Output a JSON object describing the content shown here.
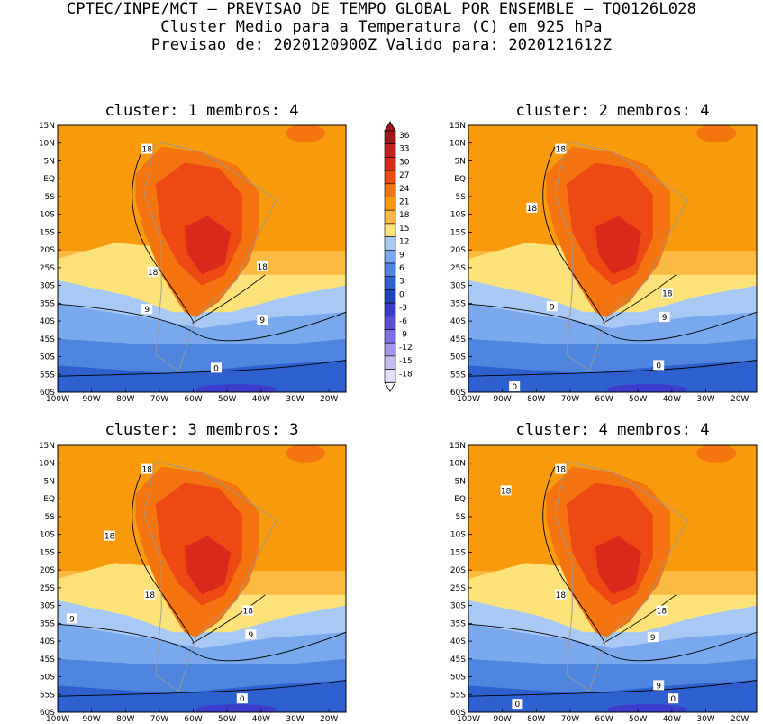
{
  "header": {
    "line1": "CPTEC/INPE/MCT – PREVISAO DE TEMPO GLOBAL POR ENSEMBLE – TQ0126L028",
    "line2": "Cluster Medio para a Temperatura (C) em 925 hPa",
    "line3": "Previsao de: 2020120900Z   Valido para: 2020121612Z"
  },
  "panels": [
    {
      "title": "cluster: 1   membros: 4",
      "contours": [
        "18",
        "18",
        "18",
        "9",
        "9",
        "0"
      ]
    },
    {
      "title": "cluster: 2   membros: 4",
      "contours": [
        "18",
        "18",
        "18",
        "9",
        "9",
        "0",
        "0"
      ]
    },
    {
      "title": "cluster: 3   membros: 3",
      "contours": [
        "18",
        "18",
        "18",
        "18",
        "9",
        "9",
        "0"
      ]
    },
    {
      "title": "cluster: 4   membros: 4",
      "contours": [
        "18",
        "18",
        "18",
        "18",
        "9",
        "9",
        "0",
        "0"
      ]
    }
  ],
  "axes": {
    "lat_labels": [
      "15N",
      "10N",
      "5N",
      "EQ",
      "5S",
      "10S",
      "15S",
      "20S",
      "25S",
      "30S",
      "35S",
      "40S",
      "45S",
      "50S",
      "55S",
      "60S"
    ],
    "lon_labels": [
      "100W",
      "90W",
      "80W",
      "70W",
      "60W",
      "50W",
      "40W",
      "30W",
      "20W"
    ]
  },
  "colorbar": {
    "labels": [
      "36",
      "33",
      "30",
      "27",
      "24",
      "21",
      "18",
      "15",
      "12",
      "9",
      "6",
      "3",
      "0",
      "-3",
      "-6",
      "-9",
      "-12",
      "-15",
      "-18"
    ],
    "colors": [
      "#9e1a1a",
      "#c42020",
      "#db2a1c",
      "#ec4a12",
      "#f4740f",
      "#f89a0c",
      "#fbbb42",
      "#fde27a",
      "#a9c9f5",
      "#79a9ec",
      "#4f84df",
      "#2e61cf",
      "#1d47b9",
      "#3b3bcc",
      "#5a4fd6",
      "#7e6fe2",
      "#a497ea",
      "#c8bdf2",
      "#e6dff8"
    ]
  }
}
